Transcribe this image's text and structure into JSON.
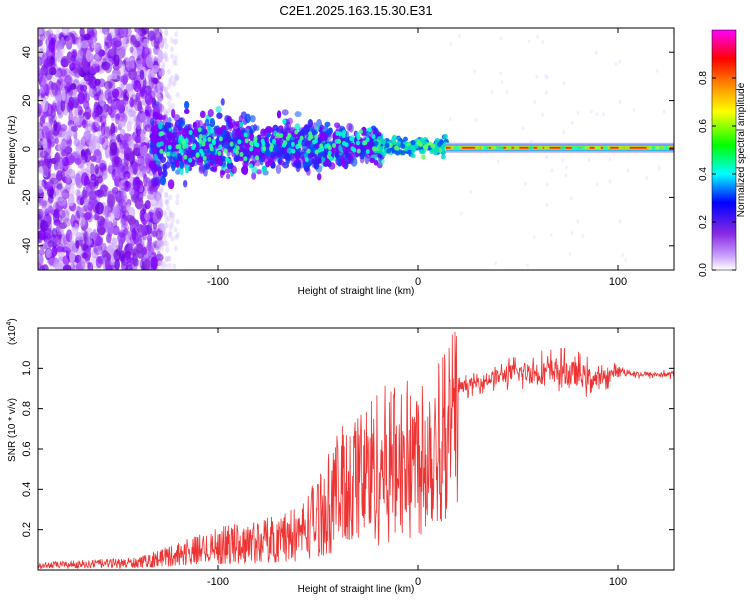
{
  "title": "C2E1.2025.163.15.30.E31",
  "chart_data": [
    {
      "type": "heatmap",
      "xlabel": "Height of straight line (km)",
      "ylabel": "Frequency (Hz)",
      "xlim": [
        -190,
        128
      ],
      "ylim": [
        -50,
        50
      ],
      "xticks": [
        -100,
        0,
        100
      ],
      "xtick_labels": [
        "-100",
        "0",
        "100"
      ],
      "yticks": [
        -40,
        -20,
        0,
        20,
        40
      ],
      "ytick_labels": [
        "-40",
        "-20",
        "0",
        "20",
        "40"
      ],
      "colorbar": {
        "label": "Normalized spectral amplitude",
        "range": [
          0,
          1
        ],
        "ticks": [
          0.0,
          0.2,
          0.4,
          0.6,
          0.8
        ],
        "tick_labels": [
          "0.0",
          "0.2",
          "0.4",
          "0.6",
          "0.8"
        ],
        "colormap": [
          "#ffffff",
          "#8a2be2",
          "#0000ff",
          "#00ffff",
          "#00ff00",
          "#ffff00",
          "#ff8000",
          "#ff0000",
          "#ff00ff"
        ]
      },
      "regions": [
        {
          "x": [
            -190,
            -130
          ],
          "freq_spread_hz": 50,
          "level": 0.15,
          "description_color": "#7f00ff"
        },
        {
          "x": [
            -130,
            -20
          ],
          "freq_spread_hz": 12,
          "level": 0.3,
          "description_color": "#3020ff"
        },
        {
          "x": [
            -20,
            15
          ],
          "freq_spread_hz": 4,
          "level": 0.45,
          "description_color": "#00e0c0"
        },
        {
          "x": [
            15,
            128
          ],
          "freq_spread_hz": 1,
          "level": 0.85,
          "description_color": "#ff2000"
        }
      ]
    },
    {
      "type": "line",
      "xlabel": "Height of straight line (km)",
      "ylabel": "SNR (10 * v/v)",
      "multiplier_label": "(x10",
      "multiplier_exp": "4",
      "multiplier_close": ")",
      "xlim": [
        -190,
        128
      ],
      "ylim": [
        0,
        1.2
      ],
      "xticks": [
        -100,
        0,
        100
      ],
      "xtick_labels": [
        "-100",
        "0",
        "100"
      ],
      "yticks": [
        0.2,
        0.4,
        0.6,
        0.8,
        1.0
      ],
      "ytick_labels": [
        "0.2",
        "0.4",
        "0.6",
        "0.8",
        "1.0"
      ],
      "series": [
        {
          "name": "SNR",
          "color": "#ee3333",
          "envelope_x": [
            -190,
            -140,
            -120,
            -100,
            -80,
            -60,
            -50,
            -40,
            -30,
            -20,
            -10,
            0,
            10,
            20,
            30,
            40,
            50,
            60,
            70,
            80,
            90,
            100,
            110,
            128
          ],
          "envelope_mean": [
            0.02,
            0.03,
            0.06,
            0.09,
            0.1,
            0.13,
            0.2,
            0.3,
            0.34,
            0.38,
            0.48,
            0.56,
            0.68,
            0.9,
            0.93,
            0.96,
            0.98,
            0.98,
            0.99,
            0.97,
            0.94,
            0.99,
            0.97,
            0.97
          ],
          "envelope_noise": [
            0.01,
            0.02,
            0.05,
            0.08,
            0.1,
            0.12,
            0.18,
            0.25,
            0.3,
            0.35,
            0.25,
            0.2,
            0.18,
            0.05,
            0.05,
            0.06,
            0.08,
            0.1,
            0.1,
            0.1,
            0.08,
            0.03,
            0.02,
            0.02
          ]
        }
      ]
    }
  ]
}
